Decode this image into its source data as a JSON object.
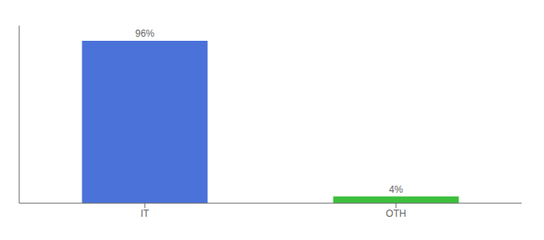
{
  "chart_data": {
    "type": "bar",
    "categories": [
      "IT",
      "OTH"
    ],
    "values": [
      96,
      4
    ],
    "value_labels": [
      "96%",
      "4%"
    ],
    "colors": [
      "#4a72d9",
      "#3dbf3d"
    ],
    "ylim": [
      0,
      105
    ],
    "data_labels": true,
    "tick_labels": "x",
    "grid": false
  }
}
